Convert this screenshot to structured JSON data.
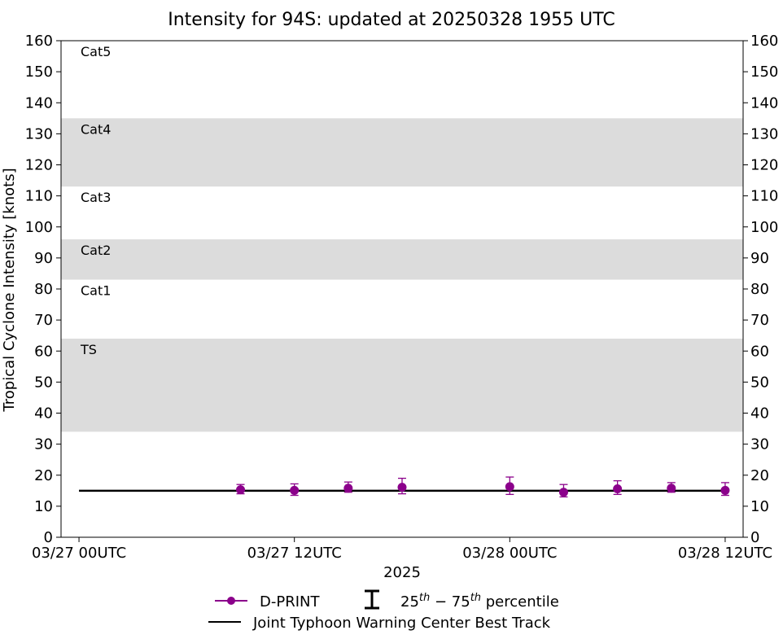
{
  "chart_data": {
    "type": "line",
    "title": "Intensity for 94S: updated at 20250328 1955 UTC",
    "xlabel": "2025",
    "ylabel": "Tropical Cyclone Intensity [knots]",
    "ylim": [
      0,
      160
    ],
    "y_ticks": [
      "0",
      "10",
      "20",
      "30",
      "40",
      "50",
      "60",
      "70",
      "80",
      "90",
      "100",
      "110",
      "120",
      "130",
      "140",
      "150",
      "160"
    ],
    "y_ticks_right": true,
    "xlim_hours": [
      -1.0,
      37.0
    ],
    "x_ticks": [
      {
        "hour": 0,
        "label": "03/27 00UTC"
      },
      {
        "hour": 12,
        "label": "03/27 12UTC"
      },
      {
        "hour": 24,
        "label": "03/28 00UTC"
      },
      {
        "hour": 36,
        "label": "03/28 12UTC"
      }
    ],
    "grid": false,
    "category_bands": [
      {
        "label": "TS",
        "from": 34,
        "to": 64,
        "shaded": true
      },
      {
        "label": "Cat1",
        "from": 64,
        "to": 83,
        "shaded": false
      },
      {
        "label": "Cat2",
        "from": 83,
        "to": 96,
        "shaded": true
      },
      {
        "label": "Cat3",
        "from": 96,
        "to": 113,
        "shaded": false
      },
      {
        "label": "Cat4",
        "from": 113,
        "to": 135,
        "shaded": true
      },
      {
        "label": "Cat5",
        "from": 135,
        "to": 160,
        "shaded": false
      }
    ],
    "band_color": "#dcdcdc",
    "series": [
      {
        "name": "D-PRINT",
        "kind": "points_with_errorbars",
        "color": "#8b008b",
        "hours": [
          9,
          12,
          15,
          18,
          24,
          27,
          30,
          33,
          36
        ],
        "values": [
          15.3,
          15.1,
          15.8,
          16.1,
          16.3,
          14.5,
          15.6,
          15.8,
          15.1
        ],
        "p25": [
          14.0,
          13.5,
          14.5,
          14.0,
          13.8,
          13.0,
          13.8,
          14.5,
          13.5
        ],
        "p75": [
          17.0,
          17.2,
          17.8,
          19.0,
          19.4,
          17.0,
          18.2,
          17.6,
          17.6
        ]
      },
      {
        "name": "Joint Typhoon Warning Center Best Track",
        "kind": "line",
        "color": "#000000",
        "hours": [
          0,
          36
        ],
        "values": [
          15,
          15
        ]
      }
    ],
    "legend": {
      "placement": "bottom-center",
      "dprint_label": "D-PRINT",
      "percentile_label": "25th − 75th percentile",
      "best_track_label": "Joint Typhoon Warning Center Best Track"
    }
  }
}
